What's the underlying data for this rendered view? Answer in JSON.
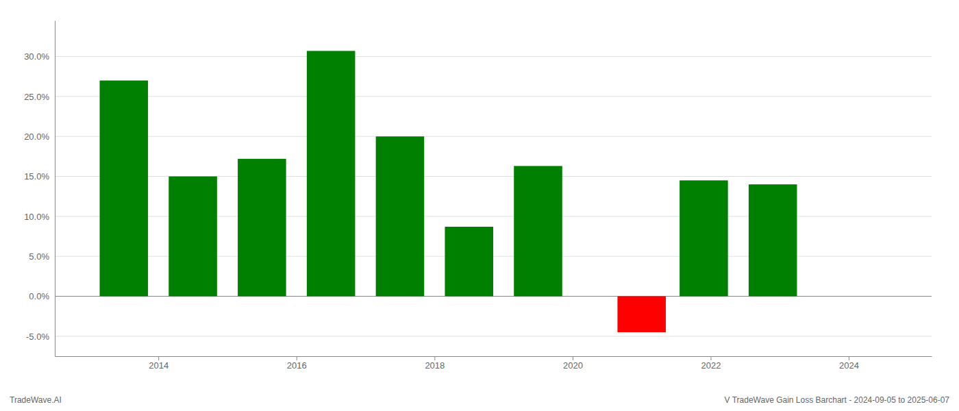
{
  "chart_data": {
    "type": "bar",
    "x": [
      2013.5,
      2014.5,
      2015.5,
      2016.5,
      2017.5,
      2018.5,
      2019.5,
      2021.0,
      2021.9,
      2022.9
    ],
    "values": [
      0.27,
      0.15,
      0.172,
      0.307,
      0.2,
      0.087,
      0.163,
      -0.045,
      0.145,
      0.14
    ],
    "colors": [
      "#008000",
      "#008000",
      "#008000",
      "#008000",
      "#008000",
      "#008000",
      "#008000",
      "#ff0000",
      "#008000",
      "#008000"
    ],
    "xlim": [
      2012.5,
      2025.2
    ],
    "xticks": [
      2014,
      2016,
      2018,
      2020,
      2022,
      2024
    ],
    "ylim": [
      -0.075,
      0.345
    ],
    "yticks": [
      {
        "value": -0.05,
        "label": "-5.0%"
      },
      {
        "value": 0.0,
        "label": "0.0%"
      },
      {
        "value": 0.05,
        "label": "5.0%"
      },
      {
        "value": 0.1,
        "label": "10.0%"
      },
      {
        "value": 0.15,
        "label": "15.0%"
      },
      {
        "value": 0.2,
        "label": "20.0%"
      },
      {
        "value": 0.25,
        "label": "25.0%"
      },
      {
        "value": 0.3,
        "label": "30.0%"
      }
    ],
    "grid": true,
    "annotations": [
      "TradeWave.AI",
      "V TradeWave Gain Loss Barchart - 2024-09-05 to 2025-06-07"
    ]
  }
}
